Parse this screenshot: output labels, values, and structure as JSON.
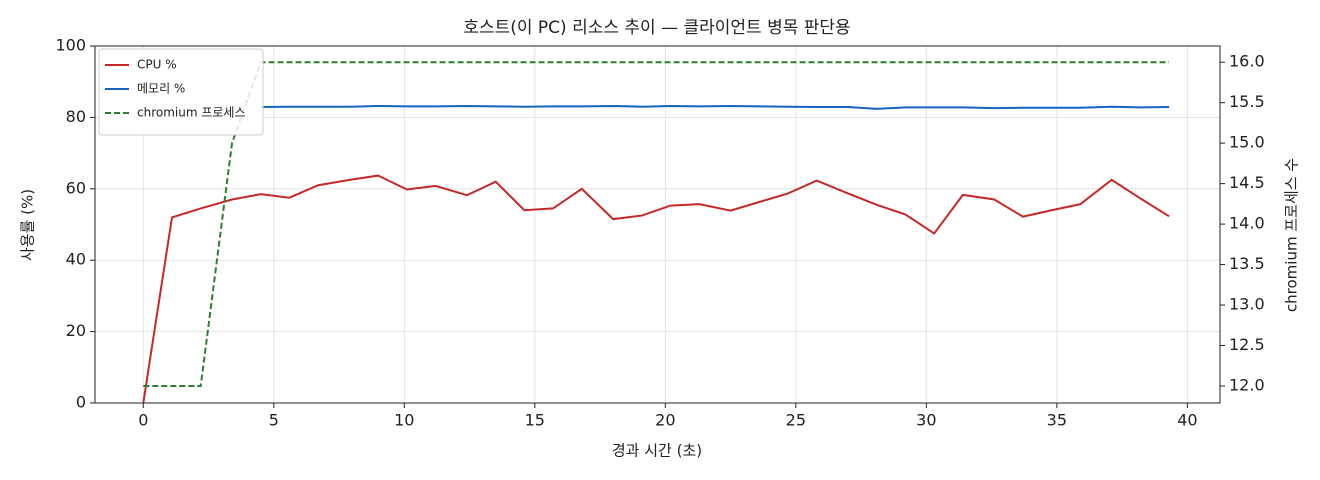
{
  "chart_data": {
    "type": "line",
    "title": "호스트(이 PC) 리소스 추이 — 클라이언트 병목 판단용",
    "x_label": "경과 시간 (초)",
    "y_label": "사용률 (%)",
    "y2_label": "chromium 프로세스 수",
    "x": [
      0,
      1.1,
      2.2,
      3.4,
      4.5,
      5.6,
      6.7,
      7.9,
      9.0,
      10.1,
      11.2,
      12.4,
      13.5,
      14.6,
      15.7,
      16.8,
      18.0,
      19.1,
      20.2,
      21.3,
      22.5,
      23.6,
      24.7,
      25.8,
      27.0,
      28.1,
      29.2,
      30.3,
      31.4,
      32.6,
      33.7,
      34.8,
      35.9,
      37.1,
      38.2,
      39.3
    ],
    "series": [
      {
        "name": "CPU %",
        "color": "#c62828",
        "linestyle": "solid",
        "axis": "y",
        "values": [
          0,
          52,
          54.5,
          57,
          58.5,
          57.5,
          61,
          62.5,
          63.7,
          59.8,
          60.8,
          58.2,
          62,
          54,
          54.5,
          60,
          51.5,
          52.5,
          55.3,
          55.7,
          53.9,
          56.3,
          58.7,
          62.3,
          58.7,
          55.5,
          52.8,
          47.5,
          58.3,
          57,
          52.2,
          54,
          55.7,
          62.5,
          57.3,
          52.3
        ]
      },
      {
        "name": "메모리 %",
        "color": "#1565c0",
        "linestyle": "solid",
        "axis": "y",
        "values": [
          null,
          null,
          null,
          null,
          82.9,
          83.0,
          83.0,
          83.0,
          83.2,
          83.1,
          83.1,
          83.2,
          83.1,
          83.0,
          83.1,
          83.1,
          83.2,
          83.0,
          83.2,
          83.1,
          83.2,
          83.1,
          83.0,
          82.9,
          82.9,
          82.4,
          82.8,
          82.8,
          82.8,
          82.6,
          82.7,
          82.7,
          82.7,
          83.0,
          82.8,
          82.9
        ]
      },
      {
        "name": "chromium 프로세스",
        "color": "#2e7d32",
        "linestyle": "dashed",
        "axis": "y2",
        "values": [
          12,
          12,
          12,
          15,
          16,
          16,
          16,
          16,
          16,
          16,
          16,
          16,
          16,
          16,
          16,
          16,
          16,
          16,
          16,
          16,
          16,
          16,
          16,
          16,
          16,
          16,
          16,
          16,
          16,
          16,
          16,
          16,
          16,
          16,
          16,
          16
        ]
      }
    ],
    "xlim": [
      -1.85,
      41.25
    ],
    "xticks": [
      0,
      5,
      10,
      15,
      20,
      25,
      30,
      35,
      40
    ],
    "ylim": [
      0,
      100
    ],
    "yticks": [
      0,
      20,
      40,
      60,
      80,
      100
    ],
    "y2lim": [
      11.79,
      16.2
    ],
    "y2ticks": [
      {
        "value": 12,
        "label": "12.0"
      },
      12.5,
      {
        "value": 13,
        "label": "13.0"
      },
      13.5,
      {
        "value": 14,
        "label": "14.0"
      },
      14.5,
      {
        "value": 15,
        "label": "15.0"
      },
      15.5,
      {
        "value": 16,
        "label": "16.0"
      }
    ],
    "grid": true,
    "legend": "upper left"
  }
}
